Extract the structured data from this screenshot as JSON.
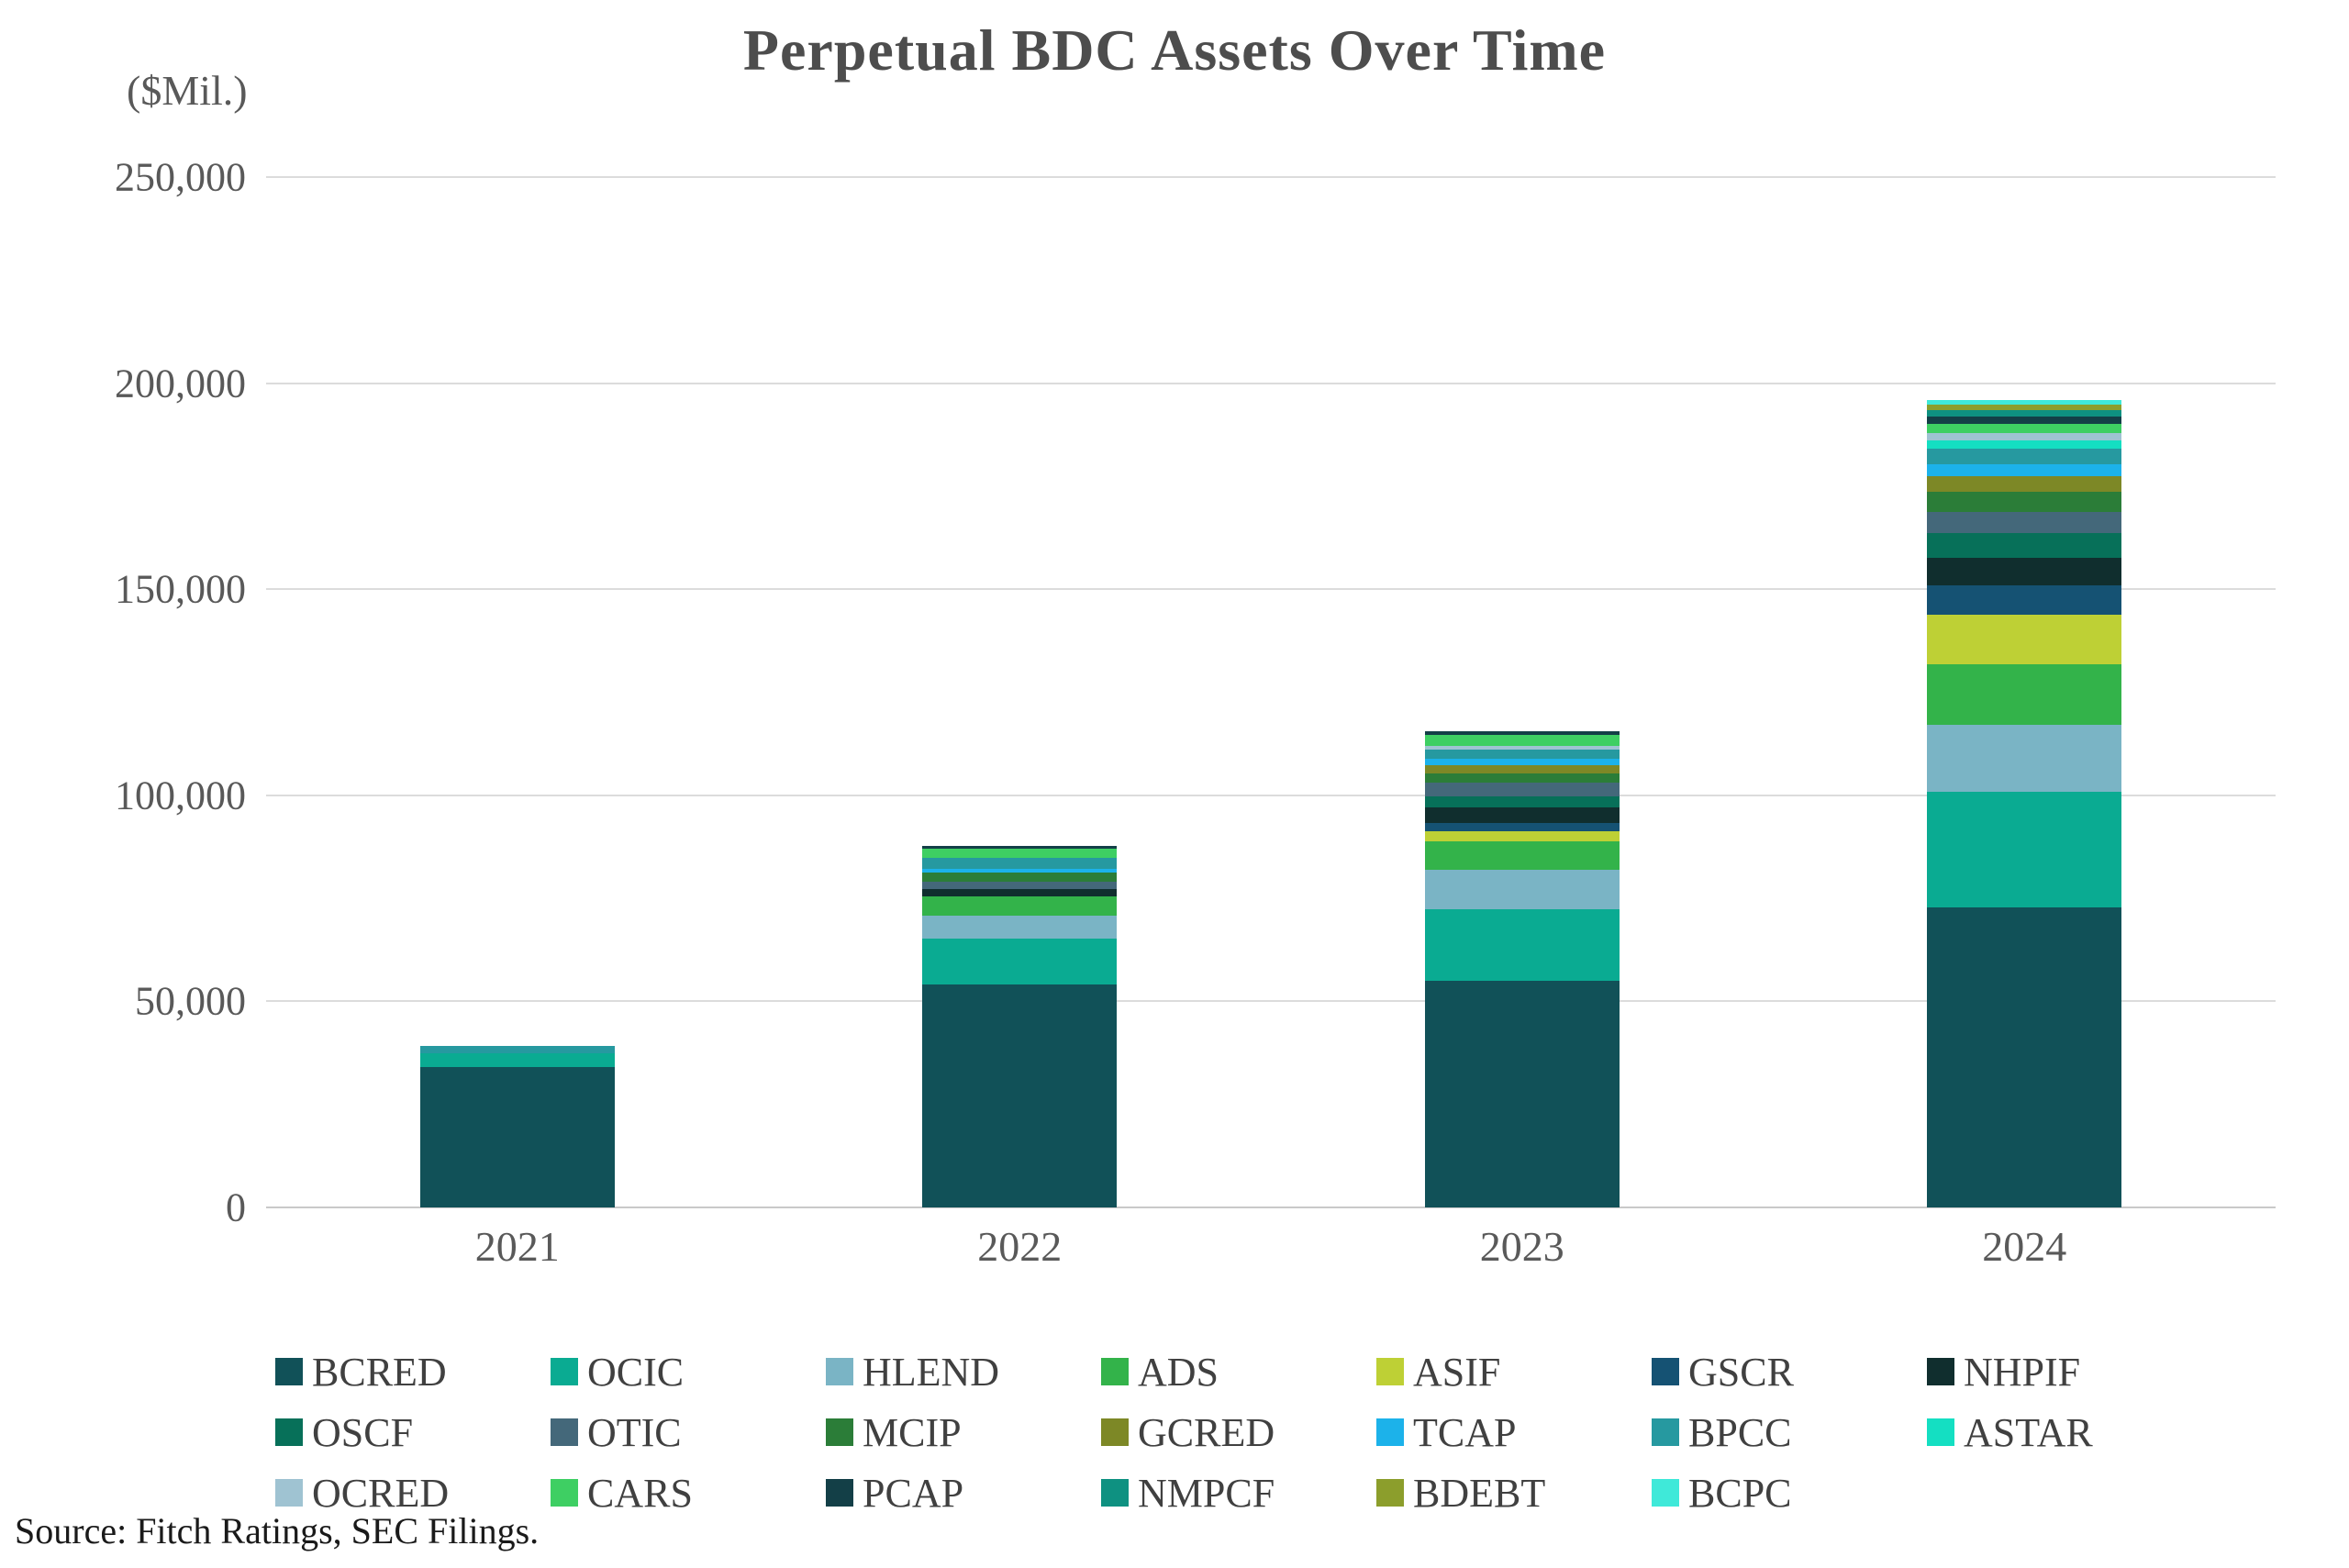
{
  "chart": {
    "title": "Perpetual BDC Assets Over Time",
    "unit_label": "($Mil.)",
    "source": "Source: Fitch Ratings, SEC Filings."
  },
  "chart_data": {
    "type": "bar",
    "stacked": true,
    "title": "Perpetual BDC Assets Over Time",
    "ylabel": "($Mil.)",
    "xlabel": "",
    "grid": true,
    "legend_position": "bottom",
    "ylim": [
      0,
      250000
    ],
    "y_ticks": [
      {
        "value": 0,
        "label": "0"
      },
      {
        "value": 50000,
        "label": "50,000"
      },
      {
        "value": 100000,
        "label": "100,000"
      },
      {
        "value": 150000,
        "label": "150,000"
      },
      {
        "value": 200000,
        "label": "200,000"
      },
      {
        "value": 250000,
        "label": "250,000"
      }
    ],
    "categories": [
      "2021",
      "2022",
      "2023",
      "2024"
    ],
    "series": [
      {
        "name": "BCRED",
        "color": "#115158",
        "values": [
          34000,
          54200,
          55000,
          72800
        ]
      },
      {
        "name": "OCIC",
        "color": "#0aab92",
        "values": [
          3300,
          11100,
          17400,
          28000
        ]
      },
      {
        "name": "HLEND",
        "color": "#7ab4c5",
        "values": [
          0,
          5500,
          9600,
          16200
        ]
      },
      {
        "name": "ADS",
        "color": "#33b34a",
        "values": [
          0,
          4700,
          6900,
          14900
        ]
      },
      {
        "name": "ASIF",
        "color": "#bed035",
        "values": [
          0,
          0,
          2400,
          12000
        ]
      },
      {
        "name": "GSCR",
        "color": "#155273",
        "values": [
          0,
          0,
          2000,
          7100
        ]
      },
      {
        "name": "NHPIF",
        "color": "#102e2e",
        "values": [
          0,
          1800,
          3800,
          6700
        ]
      },
      {
        "name": "OSCF",
        "color": "#077059",
        "values": [
          0,
          0,
          2700,
          6000
        ]
      },
      {
        "name": "OTIC",
        "color": "#44687a",
        "values": [
          0,
          1800,
          3300,
          5100
        ]
      },
      {
        "name": "MCIP",
        "color": "#2b7d38",
        "values": [
          0,
          2200,
          2200,
          4900
        ]
      },
      {
        "name": "GCRED",
        "color": "#7d8826",
        "values": [
          0,
          0,
          2000,
          3800
        ]
      },
      {
        "name": "TCAP",
        "color": "#1cb2ea",
        "values": [
          0,
          900,
          1600,
          2900
        ]
      },
      {
        "name": "BPCC",
        "color": "#2699a0",
        "values": [
          1900,
          2700,
          2200,
          3800
        ]
      },
      {
        "name": "ASTAR",
        "color": "#14dfc2",
        "values": [
          0,
          0,
          0,
          2000
        ]
      },
      {
        "name": "OCRED",
        "color": "#9fc3d2",
        "values": [
          0,
          0,
          900,
          1800
        ]
      },
      {
        "name": "CARS",
        "color": "#3ecf63",
        "values": [
          0,
          2200,
          2700,
          2200
        ]
      },
      {
        "name": "PCAP",
        "color": "#133f47",
        "values": [
          0,
          700,
          900,
          1800
        ]
      },
      {
        "name": "NMPCF",
        "color": "#0e9181",
        "values": [
          0,
          0,
          0,
          1600
        ]
      },
      {
        "name": "BDEBT",
        "color": "#8c9e2c",
        "values": [
          0,
          0,
          0,
          1300
        ]
      },
      {
        "name": "BCPC",
        "color": "#3fe9d9",
        "values": [
          0,
          0,
          0,
          1100
        ]
      }
    ],
    "legend_order_column_major": [
      "BCRED",
      "OSCF",
      "OCRED",
      "OCIC",
      "OTIC",
      "CARS",
      "HLEND",
      "MCIP",
      "PCAP",
      "ADS",
      "GCRED",
      "NMPCF",
      "ASIF",
      "TCAP",
      "BDEBT",
      "GSCR",
      "BPCC",
      "BCPC",
      "NHPIF",
      "ASTAR"
    ]
  }
}
